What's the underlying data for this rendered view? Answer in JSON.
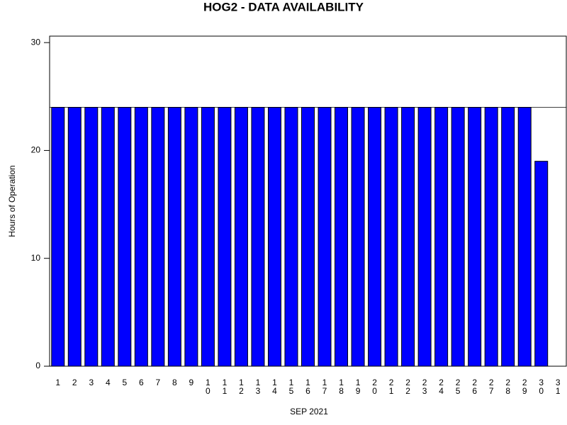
{
  "chart_data": {
    "type": "bar",
    "title": "HOG2 - DATA AVAILABILITY",
    "x_label": "SEP 2021",
    "y_label": "Hours of Operation",
    "categories": [
      "1",
      "2",
      "3",
      "4",
      "5",
      "6",
      "7",
      "8",
      "9",
      "10",
      "11",
      "12",
      "13",
      "14",
      "15",
      "16",
      "17",
      "18",
      "19",
      "20",
      "21",
      "22",
      "23",
      "24",
      "25",
      "26",
      "27",
      "28",
      "29",
      "30",
      "31"
    ],
    "values": [
      24,
      24,
      24,
      24,
      24,
      24,
      24,
      24,
      24,
      24,
      24,
      24,
      24,
      24,
      24,
      24,
      24,
      24,
      24,
      24,
      24,
      24,
      24,
      24,
      24,
      24,
      24,
      24,
      24,
      19,
      null
    ],
    "color": "#0000ff",
    "reference_line": 24,
    "ylim": [
      0,
      30.6
    ],
    "yticks": [
      0,
      10,
      20,
      30
    ],
    "grid": false
  }
}
